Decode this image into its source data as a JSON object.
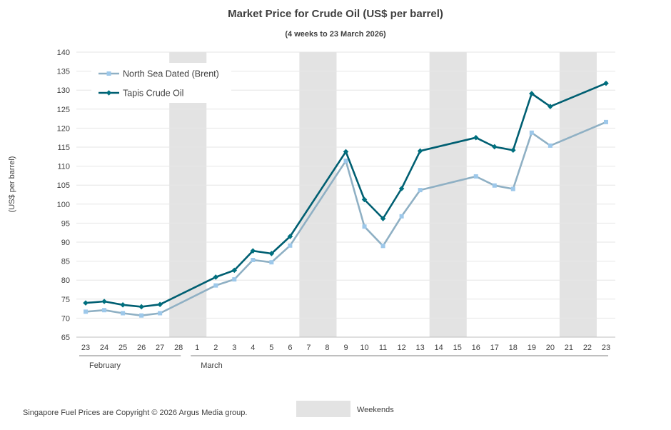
{
  "chart_data": {
    "type": "line",
    "title": "Market Price for Crude Oil (US$ per barrel)",
    "subtitle": "(4 weeks to 23 March 2026)",
    "ylabel": "(US$ per barrel)",
    "ylim": [
      65,
      140
    ],
    "ystep": 5,
    "categories": [
      "23",
      "24",
      "25",
      "26",
      "27",
      "28",
      "1",
      "2",
      "3",
      "4",
      "5",
      "6",
      "7",
      "8",
      "9",
      "10",
      "11",
      "12",
      "13",
      "14",
      "15",
      "16",
      "17",
      "18",
      "19",
      "20",
      "21",
      "22",
      "23"
    ],
    "month_groups": [
      {
        "label": "February",
        "start": 0,
        "end": 5
      },
      {
        "label": "March",
        "start": 6,
        "end": 28
      }
    ],
    "weekend_bands": [
      [
        5,
        6
      ],
      [
        12,
        13
      ],
      [
        19,
        20
      ],
      [
        26,
        27
      ]
    ],
    "weekend_label": "Weekends",
    "series": [
      {
        "name": "North Sea Dated (Brent)",
        "color": "#8fb0c4",
        "marker_color": "#9dc8ea",
        "marker": "square",
        "values": [
          71.7,
          72.1,
          71.3,
          70.7,
          71.3,
          null,
          null,
          78.6,
          80.2,
          85.3,
          84.7,
          89.1,
          null,
          null,
          111.4,
          94.1,
          89.0,
          96.8,
          103.7,
          null,
          null,
          107.3,
          104.9,
          104.0,
          118.8,
          115.4,
          null,
          null,
          121.6
        ]
      },
      {
        "name": "Tapis Crude Oil",
        "color": "#005f72",
        "marker_color": "#00707f",
        "marker": "diamond",
        "values": [
          74.0,
          74.4,
          73.5,
          73.0,
          73.6,
          null,
          null,
          80.8,
          82.6,
          87.7,
          87.0,
          91.5,
          null,
          null,
          113.8,
          101.2,
          96.2,
          104.1,
          114.0,
          null,
          null,
          117.5,
          115.1,
          114.2,
          129.1,
          125.7,
          null,
          null,
          131.8
        ]
      }
    ]
  },
  "footer": {
    "copyright": "Singapore Fuel Prices are Copyright © 2026 Argus Media group."
  }
}
